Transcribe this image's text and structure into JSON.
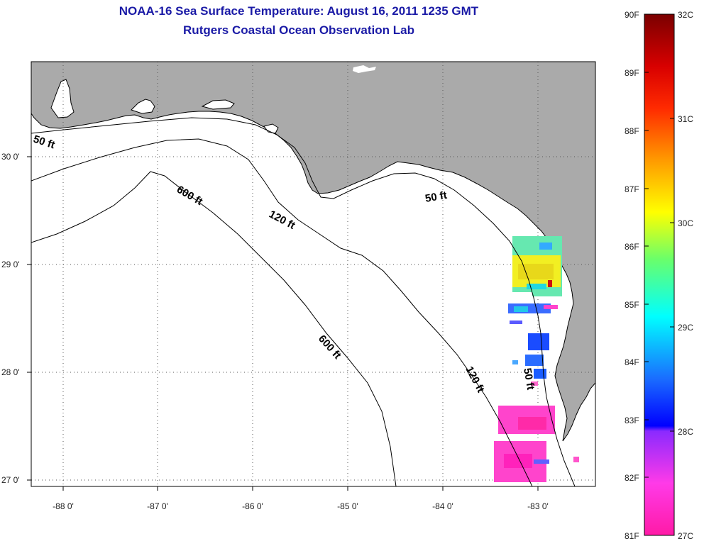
{
  "header": {
    "title": "NOAA-16 Sea Surface Temperature:  August 16, 2011 1235 GMT",
    "subtitle": "Rutgers Coastal Ocean Observation Lab"
  },
  "map": {
    "lon_ticks": [
      "-88 0'",
      "-87 0'",
      "-86 0'",
      "-85 0'",
      "-84 0'",
      "-83 0'"
    ],
    "lat_ticks": [
      "30 0'",
      "29 0'",
      "28 0'",
      "27 0'"
    ],
    "contour_labels": {
      "c50_west": "50 ft",
      "c600_a": "600 ft",
      "c120_a": "120 ft",
      "c50_east": "50 ft",
      "c600_b": "600 ft",
      "c120_b": "120 ft",
      "c50_south": "50 ft"
    },
    "colors": {
      "land": "#aaaaaa",
      "water": "#ffffff",
      "grid": "#555555"
    }
  },
  "colorbar": {
    "fahrenheit_labels": [
      "90F",
      "89F",
      "88F",
      "87F",
      "86F",
      "85F",
      "84F",
      "83F",
      "82F",
      "81F"
    ],
    "celsius_labels": [
      "32C",
      "31C",
      "30C",
      "29C",
      "28C",
      "27C"
    ]
  }
}
